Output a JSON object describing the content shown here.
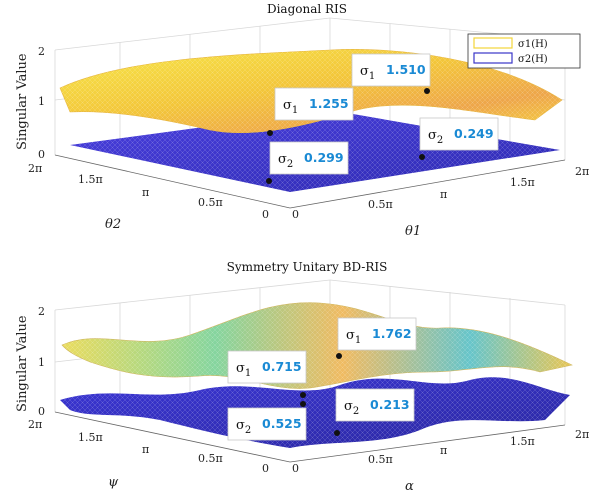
{
  "chart_data": [
    {
      "type": "surface",
      "title": "Diagonal RIS",
      "zlabel": "Singular Value",
      "xlabel": "θ1",
      "ylabel": "θ2",
      "zlim": [
        0,
        2
      ],
      "z_ticks": [
        "0",
        "1",
        "2"
      ],
      "x_ticks": [
        "0",
        "0.5π",
        "π",
        "1.5π",
        "2π"
      ],
      "y_ticks": [
        "0",
        "0.5π",
        "π",
        "1.5π",
        "2π"
      ],
      "legend": {
        "position": "top-right",
        "entries": [
          "σ1(H)",
          "σ2(H)"
        ]
      },
      "series": [
        {
          "name": "σ1(H)",
          "color": "#f2d63a"
        },
        {
          "name": "σ2(H)",
          "color": "#3a35c8"
        }
      ],
      "annotations": [
        {
          "sub": "1",
          "value": "1.510"
        },
        {
          "sub": "1",
          "value": "1.255"
        },
        {
          "sub": "2",
          "value": "0.249"
        },
        {
          "sub": "2",
          "value": "0.299"
        }
      ]
    },
    {
      "type": "surface",
      "title": "Symmetry Unitary BD-RIS",
      "zlabel": "Singular Value",
      "xlabel": "α",
      "ylabel": "ψ",
      "zlim": [
        0,
        2
      ],
      "z_ticks": [
        "0",
        "1",
        "2"
      ],
      "x_ticks": [
        "0",
        "0.5π",
        "π",
        "1.5π",
        "2π"
      ],
      "y_ticks": [
        "0",
        "0.5π",
        "π",
        "1.5π",
        "2π"
      ],
      "series": [
        {
          "name": "σ1(H)",
          "color": "#f2d63a"
        },
        {
          "name": "σ2(H)",
          "color": "#3a35c8"
        }
      ],
      "annotations": [
        {
          "sub": "1",
          "value": "1.762"
        },
        {
          "sub": "1",
          "value": "0.715"
        },
        {
          "sub": "2",
          "value": "0.213"
        },
        {
          "sub": "2",
          "value": "0.525"
        }
      ]
    }
  ]
}
